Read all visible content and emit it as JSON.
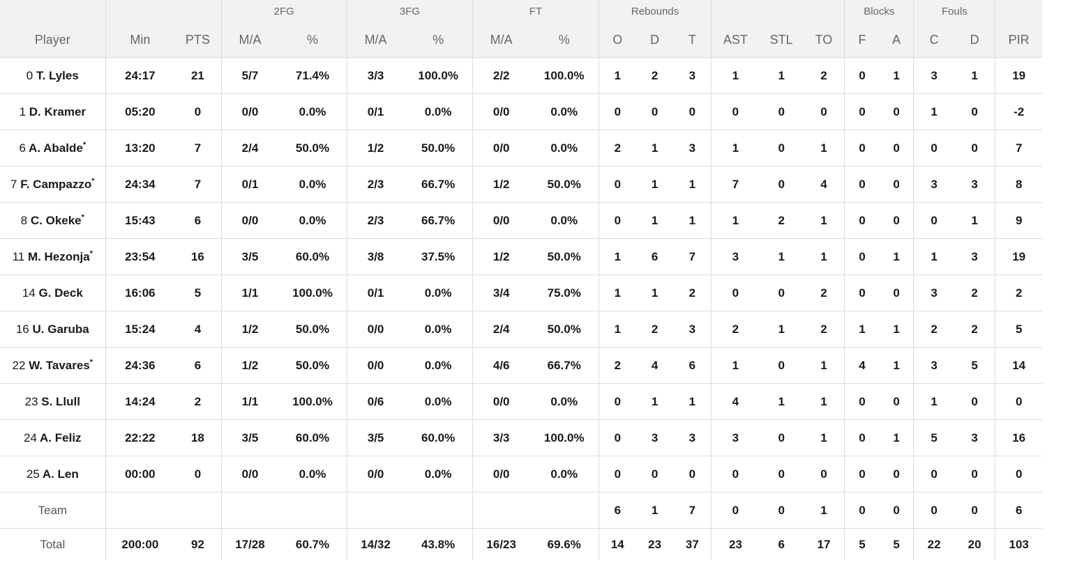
{
  "header": {
    "groups": {
      "fg2": "2FG",
      "fg3": "3FG",
      "ft": "FT",
      "rebounds": "Rebounds",
      "blocks": "Blocks",
      "fouls": "Fouls"
    },
    "columns": [
      "Player",
      "Min",
      "PTS",
      "M/A",
      "%",
      "M/A",
      "%",
      "M/A",
      "%",
      "O",
      "D",
      "T",
      "AST",
      "STL",
      "TO",
      "F",
      "A",
      "C",
      "D",
      "PIR"
    ]
  },
  "players": [
    {
      "num": "0",
      "name": "T. Lyles",
      "starter": false,
      "stats": [
        "24:17",
        "21",
        "5/7",
        "71.4%",
        "3/3",
        "100.0%",
        "2/2",
        "100.0%",
        "1",
        "2",
        "3",
        "1",
        "1",
        "2",
        "0",
        "1",
        "3",
        "1",
        "19"
      ]
    },
    {
      "num": "1",
      "name": "D. Kramer",
      "starter": false,
      "stats": [
        "05:20",
        "0",
        "0/0",
        "0.0%",
        "0/1",
        "0.0%",
        "0/0",
        "0.0%",
        "0",
        "0",
        "0",
        "0",
        "0",
        "0",
        "0",
        "0",
        "1",
        "0",
        "-2"
      ]
    },
    {
      "num": "6",
      "name": "A. Abalde",
      "starter": true,
      "stats": [
        "13:20",
        "7",
        "2/4",
        "50.0%",
        "1/2",
        "50.0%",
        "0/0",
        "0.0%",
        "2",
        "1",
        "3",
        "1",
        "0",
        "1",
        "0",
        "0",
        "0",
        "0",
        "7"
      ]
    },
    {
      "num": "7",
      "name": "F. Campazzo",
      "starter": true,
      "stats": [
        "24:34",
        "7",
        "0/1",
        "0.0%",
        "2/3",
        "66.7%",
        "1/2",
        "50.0%",
        "0",
        "1",
        "1",
        "7",
        "0",
        "4",
        "0",
        "0",
        "3",
        "3",
        "8"
      ]
    },
    {
      "num": "8",
      "name": "C. Okeke",
      "starter": true,
      "stats": [
        "15:43",
        "6",
        "0/0",
        "0.0%",
        "2/3",
        "66.7%",
        "0/0",
        "0.0%",
        "0",
        "1",
        "1",
        "1",
        "2",
        "1",
        "0",
        "0",
        "0",
        "1",
        "9"
      ]
    },
    {
      "num": "11",
      "name": "M. Hezonja",
      "starter": true,
      "stats": [
        "23:54",
        "16",
        "3/5",
        "60.0%",
        "3/8",
        "37.5%",
        "1/2",
        "50.0%",
        "1",
        "6",
        "7",
        "3",
        "1",
        "1",
        "0",
        "1",
        "1",
        "3",
        "19"
      ]
    },
    {
      "num": "14",
      "name": "G. Deck",
      "starter": false,
      "stats": [
        "16:06",
        "5",
        "1/1",
        "100.0%",
        "0/1",
        "0.0%",
        "3/4",
        "75.0%",
        "1",
        "1",
        "2",
        "0",
        "0",
        "2",
        "0",
        "0",
        "3",
        "2",
        "2"
      ]
    },
    {
      "num": "16",
      "name": "U. Garuba",
      "starter": false,
      "stats": [
        "15:24",
        "4",
        "1/2",
        "50.0%",
        "0/0",
        "0.0%",
        "2/4",
        "50.0%",
        "1",
        "2",
        "3",
        "2",
        "1",
        "2",
        "1",
        "1",
        "2",
        "2",
        "5"
      ]
    },
    {
      "num": "22",
      "name": "W. Tavares",
      "starter": true,
      "stats": [
        "24:36",
        "6",
        "1/2",
        "50.0%",
        "0/0",
        "0.0%",
        "4/6",
        "66.7%",
        "2",
        "4",
        "6",
        "1",
        "0",
        "1",
        "4",
        "1",
        "3",
        "5",
        "14"
      ]
    },
    {
      "num": "23",
      "name": "S. Llull",
      "starter": false,
      "stats": [
        "14:24",
        "2",
        "1/1",
        "100.0%",
        "0/6",
        "0.0%",
        "0/0",
        "0.0%",
        "0",
        "1",
        "1",
        "4",
        "1",
        "1",
        "0",
        "0",
        "1",
        "0",
        "0"
      ]
    },
    {
      "num": "24",
      "name": "A. Feliz",
      "starter": false,
      "stats": [
        "22:22",
        "18",
        "3/5",
        "60.0%",
        "3/5",
        "60.0%",
        "3/3",
        "100.0%",
        "0",
        "3",
        "3",
        "3",
        "0",
        "1",
        "0",
        "1",
        "5",
        "3",
        "16"
      ]
    },
    {
      "num": "25",
      "name": "A. Len",
      "starter": false,
      "stats": [
        "00:00",
        "0",
        "0/0",
        "0.0%",
        "0/0",
        "0.0%",
        "0/0",
        "0.0%",
        "0",
        "0",
        "0",
        "0",
        "0",
        "0",
        "0",
        "0",
        "0",
        "0",
        "0"
      ]
    }
  ],
  "team_row": {
    "label": "Team",
    "stats": [
      "",
      "",
      "",
      "",
      "",
      "",
      "",
      "",
      "6",
      "1",
      "7",
      "0",
      "0",
      "1",
      "0",
      "0",
      "0",
      "0",
      "6"
    ]
  },
  "total_row": {
    "label": "Total",
    "stats": [
      "200:00",
      "92",
      "17/28",
      "60.7%",
      "14/32",
      "43.8%",
      "16/23",
      "69.6%",
      "14",
      "23",
      "37",
      "23",
      "6",
      "17",
      "5",
      "5",
      "22",
      "20",
      "103"
    ]
  },
  "starter_mark": "*"
}
